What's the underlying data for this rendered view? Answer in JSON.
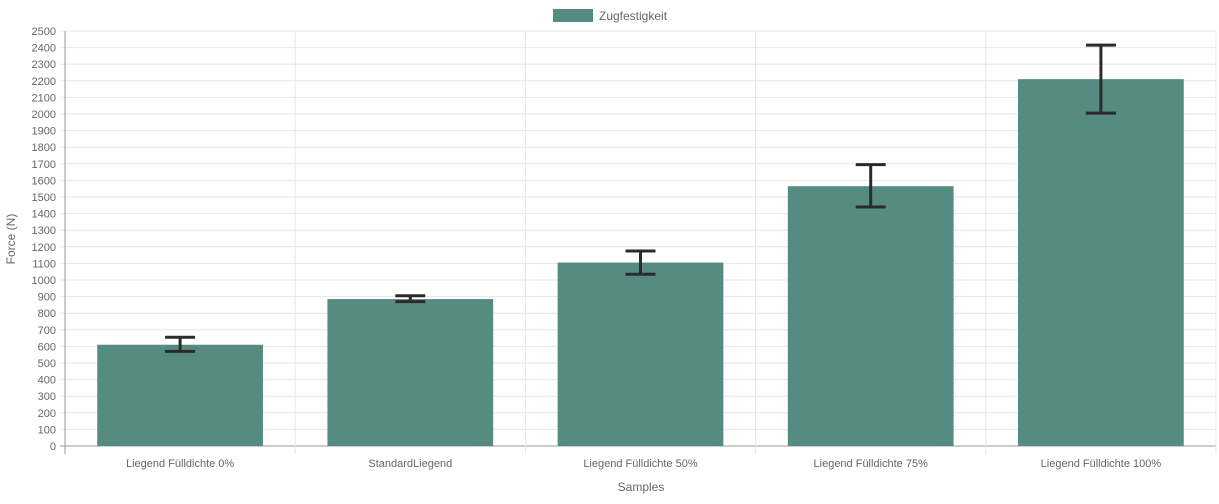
{
  "chart_data": {
    "type": "bar",
    "categories": [
      "Liegend Fülldichte 0%",
      "StandardLiegend",
      "Liegend Fülldichte 50%",
      "Liegend Fülldichte 75%",
      "Liegend Fülldichte 100%"
    ],
    "series": [
      {
        "name": "Zugfestigkeit",
        "values": [
          610,
          885,
          1105,
          1565,
          2210
        ],
        "error_low": [
          570,
          870,
          1035,
          1440,
          2005
        ],
        "error_high": [
          655,
          905,
          1175,
          1695,
          2415
        ]
      }
    ],
    "xlabel": "Samples",
    "ylabel": "Force (N)",
    "ylim": [
      0,
      2500
    ],
    "ytick_step": 100,
    "grid": true,
    "legend_position": "top",
    "colors": {
      "bar": "#568b81",
      "error_bar": "#2b2b2b",
      "grid": "#e6e6e6",
      "axis": "#999999",
      "text": "#666666"
    }
  }
}
